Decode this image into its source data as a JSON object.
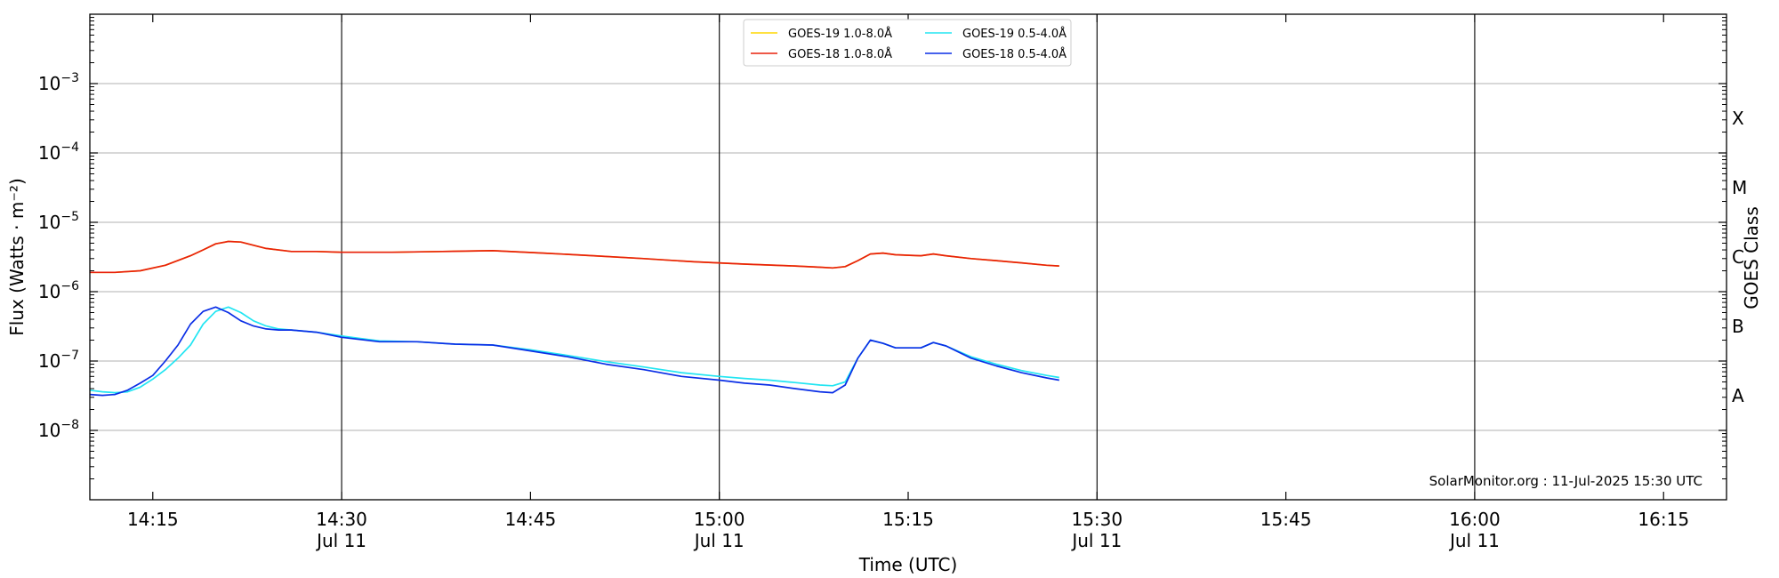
{
  "chart_data": {
    "type": "line",
    "xlabel": "Time (UTC)",
    "ylabel": "Flux (Watts · m⁻²)",
    "ylabel_right": "GOES Class",
    "credit": "SolarMonitor.org : 11-Jul-2025 15:30 UTC",
    "xlim": [
      "14:10",
      "16:20"
    ],
    "ylim": [
      1e-09,
      0.01
    ],
    "y_scale": "log",
    "x_ticks": [
      {
        "time": "14:15",
        "label": "14:15",
        "sublabel": ""
      },
      {
        "time": "14:30",
        "label": "14:30",
        "sublabel": "Jul 11"
      },
      {
        "time": "14:45",
        "label": "14:45",
        "sublabel": ""
      },
      {
        "time": "15:00",
        "label": "15:00",
        "sublabel": "Jul 11"
      },
      {
        "time": "15:15",
        "label": "15:15",
        "sublabel": ""
      },
      {
        "time": "15:30",
        "label": "15:30",
        "sublabel": "Jul 11"
      },
      {
        "time": "15:45",
        "label": "15:45",
        "sublabel": ""
      },
      {
        "time": "16:00",
        "label": "16:00",
        "sublabel": "Jul 11"
      },
      {
        "time": "16:15",
        "label": "16:15",
        "sublabel": ""
      }
    ],
    "y_ticks": [
      {
        "value": 1e-08,
        "base": "10",
        "exp": "−8"
      },
      {
        "value": 1e-07,
        "base": "10",
        "exp": "−7"
      },
      {
        "value": 1e-06,
        "base": "10",
        "exp": "−6"
      },
      {
        "value": 1e-05,
        "base": "10",
        "exp": "−5"
      },
      {
        "value": 0.0001,
        "base": "10",
        "exp": "−4"
      },
      {
        "value": 0.001,
        "base": "10",
        "exp": "−3"
      }
    ],
    "goes_classes": [
      {
        "label": "A",
        "value": 3.16e-08
      },
      {
        "label": "B",
        "value": 3.16e-07
      },
      {
        "label": "C",
        "value": 3.16e-06
      },
      {
        "label": "M",
        "value": 3.16e-05
      },
      {
        "label": "X",
        "value": 0.000316
      }
    ],
    "vertical_lines": [
      "14:30",
      "15:00",
      "15:30",
      "16:00"
    ],
    "grid": "horizontal at decades",
    "legend": {
      "placement": "top-center",
      "columns": 2
    },
    "series": [
      {
        "name": "GOES-19 1.0-8.0Å",
        "color": "#ffd700",
        "x": [
          "14:10",
          "14:12",
          "14:14",
          "14:16",
          "14:18",
          "14:19",
          "14:20",
          "14:21",
          "14:22",
          "14:24",
          "14:26",
          "14:28",
          "14:30",
          "14:34",
          "14:38",
          "14:42",
          "14:46",
          "14:50",
          "14:54",
          "14:58",
          "15:02",
          "15:06",
          "15:08",
          "15:09",
          "15:10",
          "15:11",
          "15:12",
          "15:13",
          "15:14",
          "15:16",
          "15:17",
          "15:18",
          "15:20",
          "15:22",
          "15:24",
          "15:26",
          "15:27"
        ],
        "values": [
          1.9e-06,
          1.9e-06,
          2e-06,
          2.4e-06,
          3.3e-06,
          4e-06,
          4.9e-06,
          5.3e-06,
          5.2e-06,
          4.2e-06,
          3.8e-06,
          3.8e-06,
          3.7e-06,
          3.7e-06,
          3.8e-06,
          3.9e-06,
          3.6e-06,
          3.3e-06,
          3e-06,
          2.7e-06,
          2.5e-06,
          2.35e-06,
          2.25e-06,
          2.2e-06,
          2.3e-06,
          2.8e-06,
          3.5e-06,
          3.6e-06,
          3.4e-06,
          3.3e-06,
          3.5e-06,
          3.3e-06,
          3e-06,
          2.8e-06,
          2.6e-06,
          2.4e-06,
          2.35e-06
        ]
      },
      {
        "name": "GOES-18 1.0-8.0Å",
        "color": "#e8200c",
        "x": [
          "14:10",
          "14:12",
          "14:14",
          "14:16",
          "14:18",
          "14:19",
          "14:20",
          "14:21",
          "14:22",
          "14:24",
          "14:26",
          "14:28",
          "14:30",
          "14:34",
          "14:38",
          "14:42",
          "14:46",
          "14:50",
          "14:54",
          "14:58",
          "15:02",
          "15:06",
          "15:08",
          "15:09",
          "15:10",
          "15:11",
          "15:12",
          "15:13",
          "15:14",
          "15:16",
          "15:17",
          "15:18",
          "15:20",
          "15:22",
          "15:24",
          "15:26",
          "15:27"
        ],
        "values": [
          1.9e-06,
          1.9e-06,
          2e-06,
          2.4e-06,
          3.3e-06,
          4e-06,
          4.9e-06,
          5.3e-06,
          5.2e-06,
          4.2e-06,
          3.8e-06,
          3.8e-06,
          3.7e-06,
          3.7e-06,
          3.8e-06,
          3.9e-06,
          3.6e-06,
          3.3e-06,
          3e-06,
          2.7e-06,
          2.5e-06,
          2.35e-06,
          2.25e-06,
          2.2e-06,
          2.3e-06,
          2.8e-06,
          3.5e-06,
          3.6e-06,
          3.4e-06,
          3.3e-06,
          3.5e-06,
          3.3e-06,
          3e-06,
          2.8e-06,
          2.6e-06,
          2.4e-06,
          2.35e-06
        ]
      },
      {
        "name": "GOES-19 0.5-4.0Å",
        "color": "#22e5f2",
        "x": [
          "14:10",
          "14:11",
          "14:12",
          "14:13",
          "14:14",
          "14:15",
          "14:16",
          "14:17",
          "14:18",
          "14:19",
          "14:20",
          "14:21",
          "14:22",
          "14:23",
          "14:24",
          "14:25",
          "14:26",
          "14:28",
          "14:30",
          "14:33",
          "14:36",
          "14:39",
          "14:42",
          "14:45",
          "14:48",
          "14:51",
          "14:54",
          "14:57",
          "15:00",
          "15:02",
          "15:04",
          "15:06",
          "15:08",
          "15:09",
          "15:10",
          "15:11",
          "15:12",
          "15:13",
          "15:14",
          "15:16",
          "15:17",
          "15:18",
          "15:20",
          "15:22",
          "15:24",
          "15:26",
          "15:27"
        ],
        "values": [
          3.8e-08,
          3.6e-08,
          3.5e-08,
          3.6e-08,
          4.2e-08,
          5.5e-08,
          7.5e-08,
          1.1e-07,
          1.7e-07,
          3.4e-07,
          5.2e-07,
          6e-07,
          5e-07,
          3.8e-07,
          3.2e-07,
          2.9e-07,
          2.8e-07,
          2.6e-07,
          2.3e-07,
          1.95e-07,
          1.9e-07,
          1.75e-07,
          1.7e-07,
          1.45e-07,
          1.2e-07,
          9.8e-08,
          8.2e-08,
          6.8e-08,
          6e-08,
          5.6e-08,
          5.3e-08,
          4.9e-08,
          4.5e-08,
          4.4e-08,
          5e-08,
          1.1e-07,
          2e-07,
          1.8e-07,
          1.55e-07,
          1.55e-07,
          1.85e-07,
          1.65e-07,
          1.15e-07,
          9e-08,
          7.3e-08,
          6.2e-08,
          5.8e-08
        ]
      },
      {
        "name": "GOES-18 0.5-4.0Å",
        "color": "#0a2ee6",
        "x": [
          "14:10",
          "14:11",
          "14:12",
          "14:13",
          "14:14",
          "14:15",
          "14:16",
          "14:17",
          "14:18",
          "14:19",
          "14:20",
          "14:21",
          "14:22",
          "14:23",
          "14:24",
          "14:25",
          "14:26",
          "14:28",
          "14:30",
          "14:33",
          "14:36",
          "14:39",
          "14:42",
          "14:45",
          "14:48",
          "14:51",
          "14:54",
          "14:57",
          "15:00",
          "15:02",
          "15:04",
          "15:06",
          "15:08",
          "15:09",
          "15:10",
          "15:11",
          "15:12",
          "15:13",
          "15:14",
          "15:16",
          "15:17",
          "15:18",
          "15:20",
          "15:22",
          "15:24",
          "15:26",
          "15:27"
        ],
        "values": [
          3.3e-08,
          3.2e-08,
          3.3e-08,
          3.8e-08,
          4.8e-08,
          6.2e-08,
          1e-07,
          1.7e-07,
          3.4e-07,
          5.2e-07,
          6e-07,
          5e-07,
          3.8e-07,
          3.2e-07,
          2.9e-07,
          2.8e-07,
          2.8e-07,
          2.6e-07,
          2.2e-07,
          1.9e-07,
          1.9e-07,
          1.75e-07,
          1.7e-07,
          1.4e-07,
          1.15e-07,
          9e-08,
          7.5e-08,
          6e-08,
          5.3e-08,
          4.8e-08,
          4.5e-08,
          4e-08,
          3.6e-08,
          3.5e-08,
          4.5e-08,
          1.1e-07,
          2e-07,
          1.8e-07,
          1.55e-07,
          1.55e-07,
          1.85e-07,
          1.65e-07,
          1.1e-07,
          8.5e-08,
          6.8e-08,
          5.7e-08,
          5.3e-08
        ]
      }
    ]
  }
}
